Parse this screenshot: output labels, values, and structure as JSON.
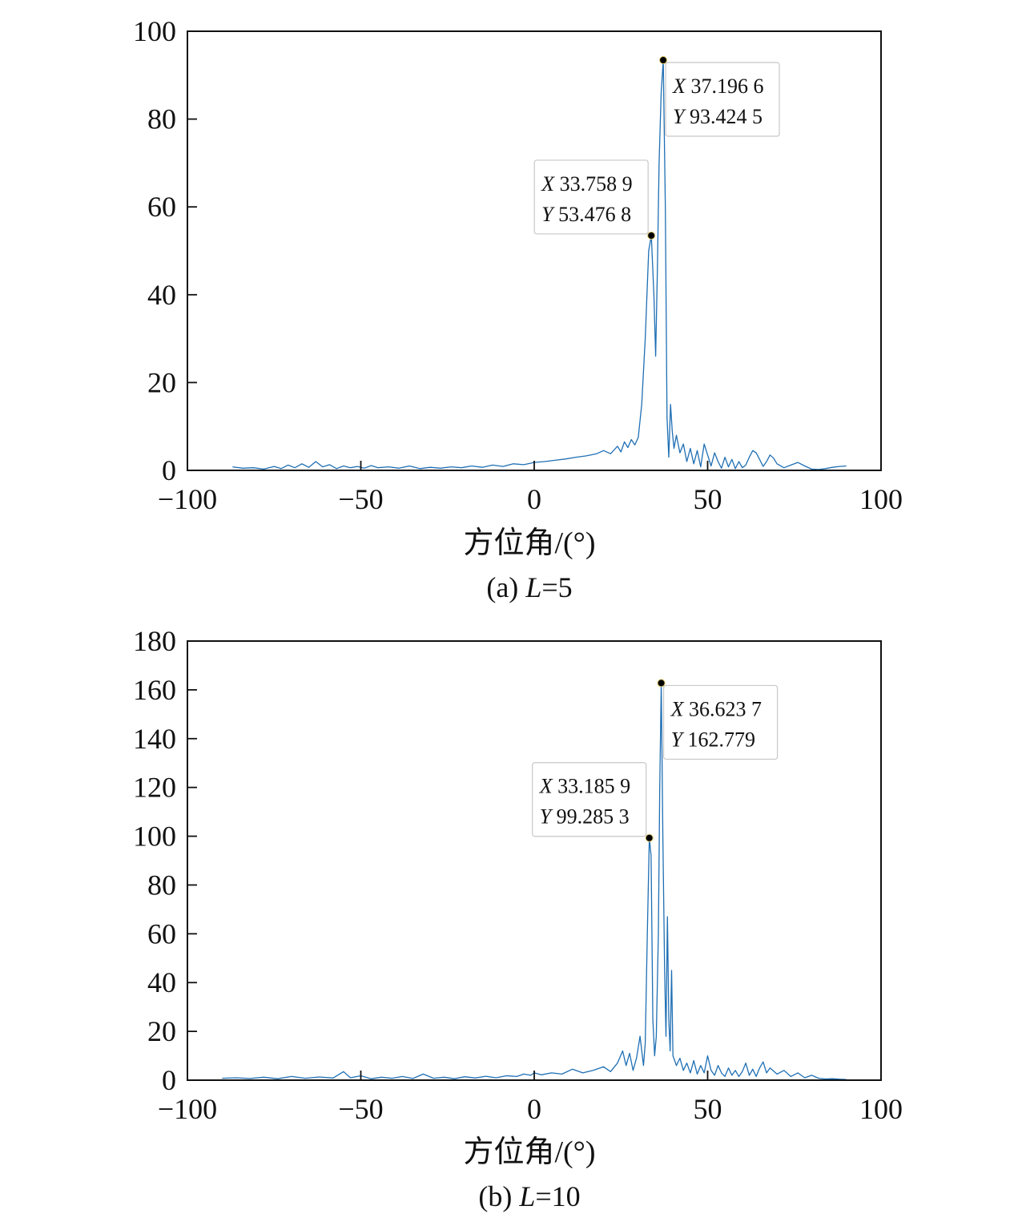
{
  "chart_data": [
    {
      "type": "line",
      "xlabel": "方位角/(°)",
      "ylabel": "",
      "caption_prefix": "(a) ",
      "caption_var": "L",
      "caption_suffix": "=5",
      "xlim": [
        -100,
        100
      ],
      "ylim": [
        0,
        100
      ],
      "xticks": [
        -100,
        -50,
        0,
        50,
        100
      ],
      "xtick_labels": [
        "−100",
        "−50",
        "0",
        "50",
        "100"
      ],
      "yticks": [
        0,
        20,
        40,
        60,
        80,
        100
      ],
      "ytick_labels": [
        "0",
        "20",
        "40",
        "60",
        "80",
        "100"
      ],
      "line_color": "#1f6fb4",
      "series": [
        {
          "x": [
            -87,
            -84,
            -81,
            -78,
            -75,
            -73,
            -71,
            -69,
            -67,
            -65,
            -63,
            -61,
            -59,
            -57,
            -55,
            -53,
            -51,
            -49,
            -47,
            -45,
            -42,
            -39,
            -36,
            -33,
            -30,
            -27,
            -24,
            -21,
            -18,
            -15,
            -12,
            -9,
            -6,
            -3,
            0,
            3,
            6,
            9,
            12,
            15,
            18,
            20,
            22,
            24,
            25,
            26,
            27,
            28,
            29,
            30,
            31,
            32,
            33,
            33.76,
            34.5,
            35,
            35.5,
            36,
            36.6,
            37.2,
            37.8,
            38.3,
            38.8,
            39.3,
            39.8,
            40.3,
            41,
            42,
            43,
            44,
            45,
            46,
            47,
            48,
            49,
            50,
            51,
            52,
            53,
            54,
            55,
            56,
            57,
            58,
            59,
            60,
            61,
            62,
            63,
            64,
            65,
            66,
            67,
            68,
            69,
            70,
            72,
            74,
            76,
            78,
            80,
            82,
            84,
            86,
            88,
            90
          ],
          "y": [
            0.8,
            0.5,
            0.6,
            0.3,
            0.9,
            0.4,
            1.2,
            0.6,
            1.5,
            0.7,
            2.0,
            0.8,
            1.3,
            0.4,
            1.0,
            0.6,
            0.9,
            0.5,
            1.1,
            0.6,
            0.8,
            0.5,
            1.0,
            0.4,
            0.7,
            0.5,
            0.8,
            0.6,
            1.0,
            0.7,
            1.2,
            0.9,
            1.5,
            1.3,
            1.8,
            2.0,
            2.3,
            2.6,
            3.0,
            3.3,
            3.8,
            4.5,
            3.8,
            5.5,
            4.2,
            6.5,
            5.2,
            7.0,
            5.8,
            7.5,
            15.0,
            30.0,
            50.0,
            53.48,
            40.0,
            26.0,
            45.0,
            70.0,
            86.0,
            93.42,
            60.0,
            12.0,
            3.0,
            15.0,
            9.0,
            5.0,
            8.0,
            4.0,
            6.0,
            2.0,
            5.0,
            1.5,
            4.5,
            0.8,
            6.0,
            3.5,
            1.0,
            4.0,
            2.0,
            0.5,
            3.0,
            0.8,
            2.5,
            0.4,
            2.0,
            0.6,
            1.2,
            3.0,
            4.5,
            4.0,
            2.5,
            0.9,
            2.0,
            3.5,
            2.8,
            1.5,
            0.6,
            1.2,
            1.8,
            1.0,
            0.3,
            0.2,
            0.4,
            0.7,
            0.9,
            1.0
          ]
        }
      ],
      "annotations": [
        {
          "x": 37.1966,
          "y": 93.4245,
          "x_text": "37.196 6",
          "y_text": "93.424 5",
          "box_side": "right"
        },
        {
          "x": 33.7589,
          "y": 53.4768,
          "x_text": "33.758 9",
          "y_text": "53.476 8",
          "box_side": "left"
        }
      ]
    },
    {
      "type": "line",
      "xlabel": "方位角/(°)",
      "ylabel": "",
      "caption_prefix": "(b) ",
      "caption_var": "L",
      "caption_suffix": "=10",
      "xlim": [
        -100,
        100
      ],
      "ylim": [
        0,
        180
      ],
      "xticks": [
        -100,
        -50,
        0,
        50,
        100
      ],
      "xtick_labels": [
        "−100",
        "−50",
        "0",
        "50",
        "100"
      ],
      "yticks": [
        0,
        20,
        40,
        60,
        80,
        100,
        120,
        140,
        160,
        180
      ],
      "ytick_labels": [
        "0",
        "20",
        "40",
        "60",
        "80",
        "100",
        "120",
        "140",
        "160",
        "180"
      ],
      "line_color": "#1f6fb4",
      "series": [
        {
          "x": [
            -90,
            -86,
            -82,
            -78,
            -74,
            -70,
            -66,
            -62,
            -58,
            -55,
            -53,
            -50,
            -47,
            -44,
            -41,
            -38,
            -35,
            -32,
            -29,
            -26,
            -23,
            -20,
            -17,
            -14,
            -11,
            -8,
            -5,
            -3,
            -1,
            0,
            2,
            5,
            8,
            11,
            14,
            17,
            20,
            22,
            24,
            25.5,
            26.5,
            27.5,
            28.5,
            29.5,
            30.5,
            31.5,
            32,
            32.6,
            33.19,
            33.7,
            34.2,
            34.7,
            35.2,
            35.8,
            36.2,
            36.62,
            37.1,
            37.6,
            38.0,
            38.4,
            38.8,
            39.2,
            39.6,
            40.0,
            40.5,
            41,
            42,
            43,
            44,
            45,
            46,
            47,
            48,
            49,
            50,
            51,
            52,
            53,
            54,
            55,
            56,
            57,
            58,
            59,
            60,
            61,
            62,
            63,
            64,
            65,
            66,
            67,
            68,
            70,
            72,
            74,
            76,
            78,
            80,
            82,
            84,
            86,
            88,
            90
          ],
          "y": [
            0.8,
            1.0,
            0.7,
            1.2,
            0.6,
            1.5,
            0.8,
            1.3,
            0.9,
            3.5,
            1.0,
            1.8,
            0.6,
            1.2,
            0.8,
            1.5,
            0.7,
            2.5,
            0.8,
            1.2,
            0.6,
            1.4,
            0.9,
            1.6,
            1.0,
            1.8,
            1.5,
            2.5,
            2.0,
            3.0,
            2.2,
            3.0,
            2.5,
            4.5,
            3.0,
            4.0,
            5.5,
            3.5,
            7.0,
            12.0,
            6.0,
            11.0,
            4.0,
            9.0,
            18.0,
            6.0,
            15.0,
            60.0,
            99.29,
            92.0,
            25.0,
            10.0,
            18.0,
            60.0,
            120.0,
            162.78,
            100.0,
            45.0,
            18.0,
            67.0,
            25.0,
            12.0,
            45.0,
            10.0,
            8.0,
            6.0,
            9.0,
            4.0,
            7.0,
            3.0,
            8.0,
            2.5,
            6.0,
            3.0,
            10.0,
            4.0,
            2.0,
            6.0,
            3.0,
            1.5,
            5.0,
            2.0,
            4.0,
            1.5,
            3.5,
            7.0,
            2.0,
            4.5,
            1.5,
            5.0,
            7.5,
            3.0,
            5.0,
            2.5,
            4.0,
            1.5,
            3.0,
            1.0,
            2.0,
            0.8,
            0.5,
            0.6,
            0.4,
            0.3
          ]
        }
      ],
      "annotations": [
        {
          "x": 36.6237,
          "y": 162.779,
          "x_text": "36.623 7",
          "y_text": "162.779",
          "box_side": "right"
        },
        {
          "x": 33.1859,
          "y": 99.2853,
          "x_text": "33.185 9",
          "y_text": "99.285 3",
          "box_side": "left"
        }
      ]
    }
  ]
}
